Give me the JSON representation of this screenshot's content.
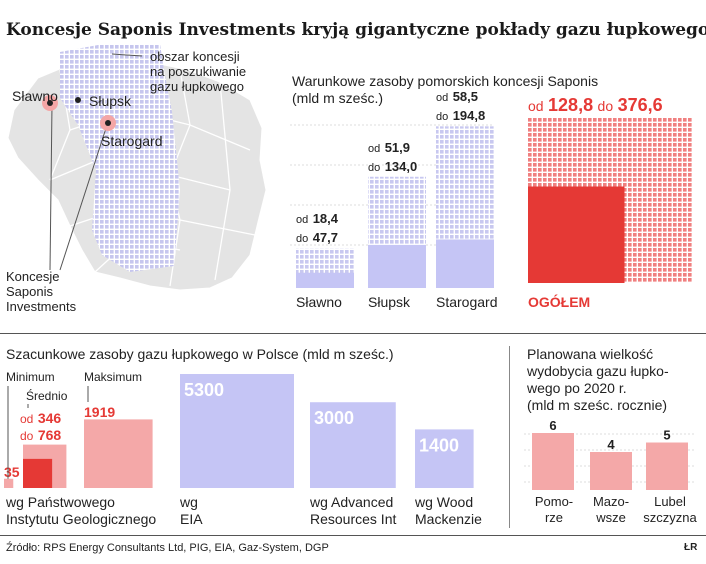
{
  "title": "Koncesje Saponis Investments kryją gigantyczne pokłady gazu łupkowego",
  "map": {
    "legend": [
      "obszar koncesji",
      "na poszukiwanie",
      "gazu łupkowego"
    ],
    "towns": [
      "Sławno",
      "Słupsk",
      "Starogard"
    ],
    "concession_label": [
      "Koncesje",
      "Saponis",
      "Investments"
    ]
  },
  "colors": {
    "accent": "#e53935",
    "lavender": "#c5c5f5",
    "pink": "#f4a8a8",
    "grid": "#c8c8f0"
  },
  "chart_data": [
    {
      "type": "bar",
      "title": "Warunkowe zasoby pomorskich koncesji Saponis",
      "title_line2": "(mld m sześc.)",
      "categories": [
        "Sławno",
        "Słupsk",
        "Starogard"
      ],
      "series": [
        {
          "values": [
            18.4,
            51.9,
            58.5
          ]
        },
        {
          "values": [
            47.7,
            134.0,
            194.8
          ]
        }
      ],
      "labels": [
        {
          "od_prefix": "od",
          "od": "18,4",
          "do_prefix": "do",
          "do": "47,7"
        },
        {
          "od_prefix": "od",
          "od": "51,9",
          "do_prefix": "do",
          "do": "134,0"
        },
        {
          "od_prefix": "od",
          "od": "58,5",
          "do_prefix": "do",
          "do": "194,8"
        }
      ],
      "total": {
        "label": "OGÓŁEM",
        "od_prefix": "od",
        "min": "128,8",
        "do_prefix": "do",
        "max": "376,6",
        "min_value": 128.8,
        "max_value": 376.6
      }
    },
    {
      "type": "bar",
      "title": "Szacunkowe zasoby gazu łupkowego w Polsce (mld m sześc.)",
      "categories": [
        "wg Państwowego Instytutu Geologicznego",
        "wg EIA",
        "wg Advanced Resources Int",
        "wg Wood Mackenzie"
      ],
      "category_lines": [
        [
          "wg Państwowego",
          "Instytutu Geologicznego"
        ],
        [
          "wg",
          "EIA"
        ],
        [
          "wg Advanced",
          "Resources Int"
        ],
        [
          "wg Wood",
          "Mackenzie"
        ]
      ],
      "values": [
        1919,
        5300,
        3000,
        1400
      ],
      "value_labels": [
        "1919",
        "5300",
        "3000",
        "1400"
      ],
      "pig_detail": {
        "minimum_label": "Minimum",
        "minimum": "35",
        "minimum_value": 35,
        "srednio_label": "Średnio",
        "od_prefix": "od",
        "od": "346",
        "do_prefix": "do",
        "do": "768",
        "od_value": 346,
        "do_value": 768,
        "maksimum_label": "Maksimum",
        "maksimum": "1919"
      }
    },
    {
      "type": "bar",
      "title_lines": [
        "Planowana wielkość",
        "wydobycia gazu łupko-",
        "wego po 2020 r.",
        "(mld m sześc. rocznie)"
      ],
      "categories": [
        "Pomorze",
        "Mazowsze",
        "Lubelszczyzna"
      ],
      "category_lines": [
        [
          "Pomo-",
          "rze"
        ],
        [
          "Mazo-",
          "wsze"
        ],
        [
          "Lubel",
          "szczyzna"
        ]
      ],
      "values": [
        6,
        4,
        5
      ],
      "value_labels": [
        "6",
        "4",
        "5"
      ]
    }
  ],
  "source": "Źródło: RPS Energy Consultants Ltd, PIG, EIA, Gaz-System, DGP",
  "credit": "ŁR"
}
